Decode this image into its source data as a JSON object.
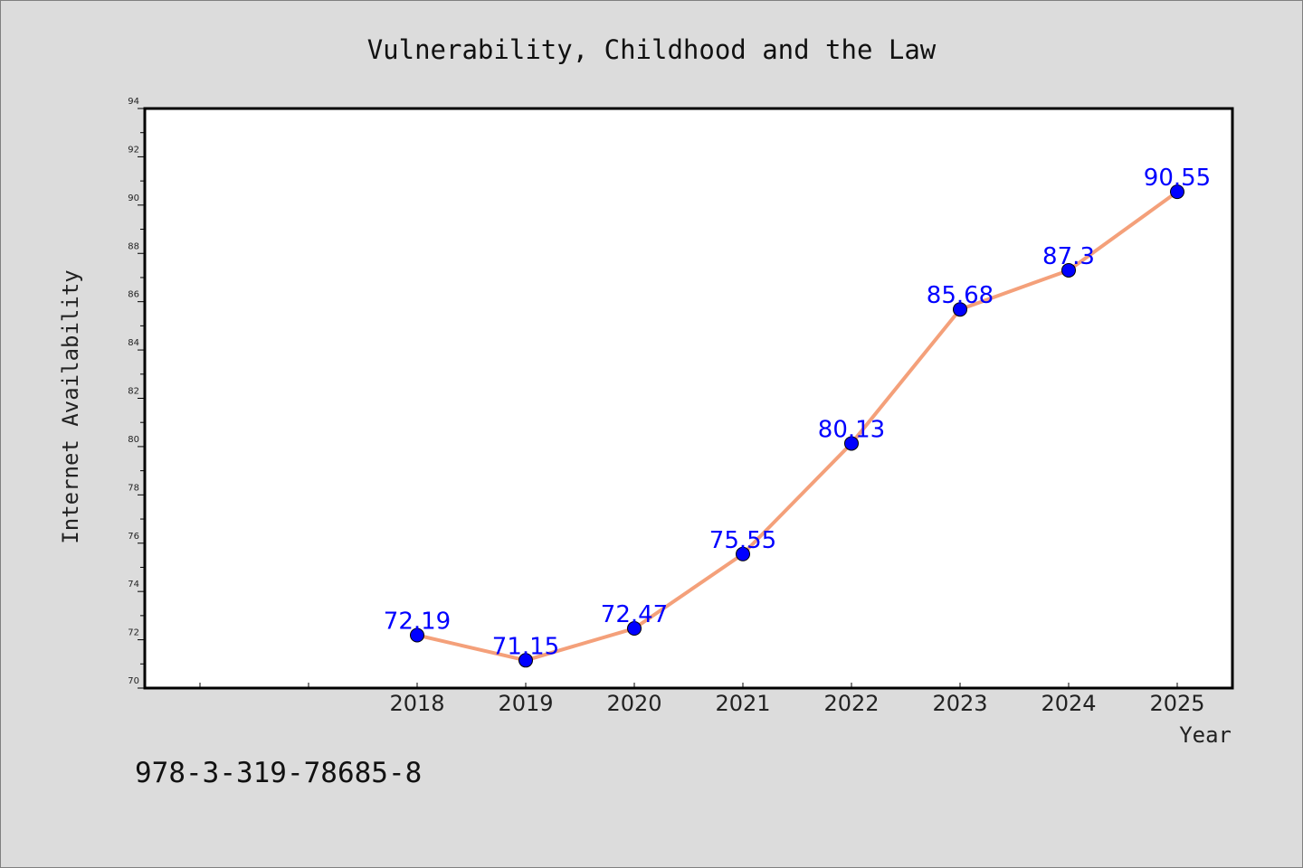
{
  "chart_data": {
    "type": "line",
    "title": "Vulnerability, Childhood and the Law",
    "xlabel": "Year",
    "ylabel": "Internet Availability",
    "categories": [
      "2018",
      "2019",
      "2020",
      "2021",
      "2022",
      "2023",
      "2024",
      "2025"
    ],
    "series": [
      {
        "values": [
          72.19,
          71.15,
          72.47,
          75.55,
          80.13,
          85.68,
          87.3,
          90.55
        ],
        "labels": [
          "72.19",
          "71.15",
          "72.47",
          "75.55",
          "80.13",
          "85.68",
          "87.3",
          "90.55"
        ]
      }
    ],
    "ylim": [
      70,
      94
    ],
    "yticks": [
      "70",
      "72",
      "74",
      "76",
      "78",
      "80",
      "82",
      "84",
      "86",
      "88",
      "90",
      "92",
      "94"
    ],
    "grid": false,
    "colors": {
      "line": "#f4a07a",
      "marker": "#0000ff",
      "label": "#0000ff",
      "plot_background": "#ffffff",
      "figure_background": "#dcdcdc"
    }
  },
  "footer_text": "978-3-319-78685-8"
}
